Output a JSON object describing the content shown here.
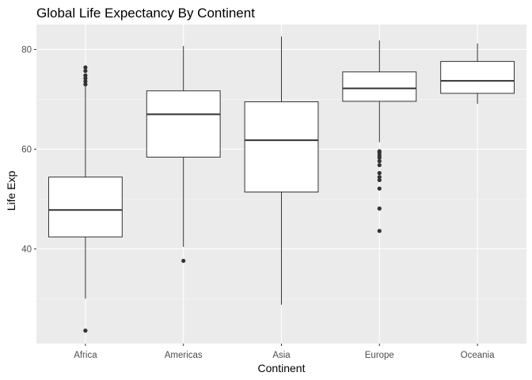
{
  "chart_data": {
    "type": "boxplot",
    "title": "Global Life Expectancy By Continent",
    "xlabel": "Continent",
    "ylabel": "Life Exp",
    "ylim": [
      21,
      85
    ],
    "yticks": [
      40,
      60,
      80
    ],
    "grid": true,
    "legend": "none",
    "categories": [
      "Africa",
      "Americas",
      "Asia",
      "Europe",
      "Oceania"
    ],
    "boxes": [
      {
        "category": "Africa",
        "whisker_low": 30.0,
        "q1": 42.4,
        "median": 47.8,
        "q3": 54.4,
        "whisker_high": 72.8,
        "outliers": [
          23.6,
          73.0,
          73.6,
          74.2,
          74.8,
          75.7,
          76.4
        ]
      },
      {
        "category": "Americas",
        "whisker_low": 40.4,
        "q1": 58.4,
        "median": 67.0,
        "q3": 71.7,
        "whisker_high": 80.7,
        "outliers": [
          37.6
        ]
      },
      {
        "category": "Asia",
        "whisker_low": 28.8,
        "q1": 51.4,
        "median": 61.8,
        "q3": 69.5,
        "whisker_high": 82.6,
        "outliers": []
      },
      {
        "category": "Europe",
        "whisker_low": 61.4,
        "q1": 69.6,
        "median": 72.2,
        "q3": 75.5,
        "whisker_high": 81.8,
        "outliers": [
          43.6,
          48.1,
          52.1,
          53.8,
          54.4,
          55.2,
          56.8,
          57.6,
          58.3,
          58.8,
          59.3,
          59.6
        ]
      },
      {
        "category": "Oceania",
        "whisker_low": 69.1,
        "q1": 71.2,
        "median": 73.7,
        "q3": 77.6,
        "whisker_high": 81.2,
        "outliers": []
      }
    ],
    "colors": {
      "panel": "#ebebeb",
      "grid_major": "#ffffff",
      "grid_minor": "#f5f5f5",
      "box_fill": "#ffffff",
      "box_stroke": "#333333",
      "outlier": "#333333",
      "tick": "#333333"
    }
  }
}
